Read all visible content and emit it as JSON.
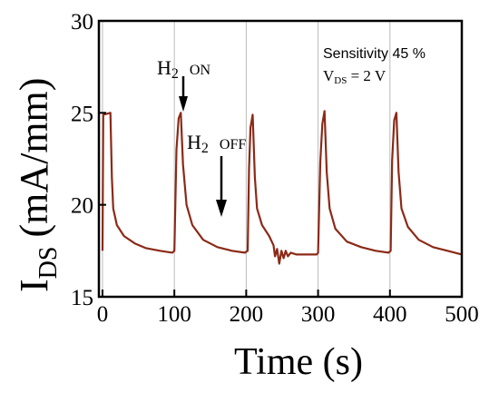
{
  "chart_data": {
    "type": "line",
    "xlabel": "Time (s)",
    "ylabel": "I",
    "ylabel_sub": "DS",
    "ylabel_units": "(mA/mm)",
    "xlim": [
      -5,
      500
    ],
    "ylim": [
      15,
      30
    ],
    "xticks": [
      0,
      100,
      200,
      300,
      400,
      500
    ],
    "yticks": [
      15,
      20,
      25,
      30
    ],
    "grid": "vertical",
    "line_color": "#8b2a17",
    "vgrid_color": "#bbbbbb",
    "series": [
      {
        "values": [
          [
            0,
            17.5
          ],
          [
            1,
            24.9
          ],
          [
            11,
            25.0
          ],
          [
            13,
            21.5
          ],
          [
            15,
            19.8
          ],
          [
            20,
            18.9
          ],
          [
            30,
            18.3
          ],
          [
            45,
            17.9
          ],
          [
            60,
            17.65
          ],
          [
            80,
            17.5
          ],
          [
            97,
            17.4
          ],
          [
            100,
            17.5
          ],
          [
            103,
            23.0
          ],
          [
            106,
            24.7
          ],
          [
            109,
            25.0
          ],
          [
            112,
            22.2
          ],
          [
            117,
            20.0
          ],
          [
            125,
            18.9
          ],
          [
            140,
            18.1
          ],
          [
            160,
            17.7
          ],
          [
            180,
            17.5
          ],
          [
            198,
            17.4
          ],
          [
            202,
            17.5
          ],
          [
            204,
            22.0
          ],
          [
            206,
            24.2
          ],
          [
            209,
            24.9
          ],
          [
            212,
            21.5
          ],
          [
            215,
            19.8
          ],
          [
            222,
            18.9
          ],
          [
            232,
            18.3
          ],
          [
            238,
            17.8
          ],
          [
            240,
            17.2
          ],
          [
            243,
            17.6
          ],
          [
            246,
            16.8
          ],
          [
            249,
            17.5
          ],
          [
            252,
            17.1
          ],
          [
            255,
            17.5
          ],
          [
            258,
            17.2
          ],
          [
            262,
            17.4
          ],
          [
            270,
            17.3
          ],
          [
            285,
            17.3
          ],
          [
            298,
            17.3
          ],
          [
            300,
            17.4
          ],
          [
            303,
            22.3
          ],
          [
            306,
            24.4
          ],
          [
            309,
            25.1
          ],
          [
            312,
            21.8
          ],
          [
            316,
            19.8
          ],
          [
            324,
            18.7
          ],
          [
            340,
            18.0
          ],
          [
            360,
            17.7
          ],
          [
            380,
            17.5
          ],
          [
            398,
            17.4
          ],
          [
            401,
            17.5
          ],
          [
            403,
            22.4
          ],
          [
            406,
            24.6
          ],
          [
            409,
            25.0
          ],
          [
            412,
            21.8
          ],
          [
            416,
            19.8
          ],
          [
            425,
            18.8
          ],
          [
            440,
            18.1
          ],
          [
            460,
            17.7
          ],
          [
            480,
            17.5
          ],
          [
            500,
            17.3
          ]
        ]
      }
    ],
    "annotations": {
      "h2_on_main": "H",
      "h2_on_sub": "2",
      "h2_on_state": "ON",
      "h2_off_main": "H",
      "h2_off_sub": "2",
      "h2_off_state": "OFF",
      "sensitivity": "Sensitivity 45 %",
      "vds_prefix": "V",
      "vds_sub": "DS",
      "vds_value": " = 2 V"
    }
  }
}
